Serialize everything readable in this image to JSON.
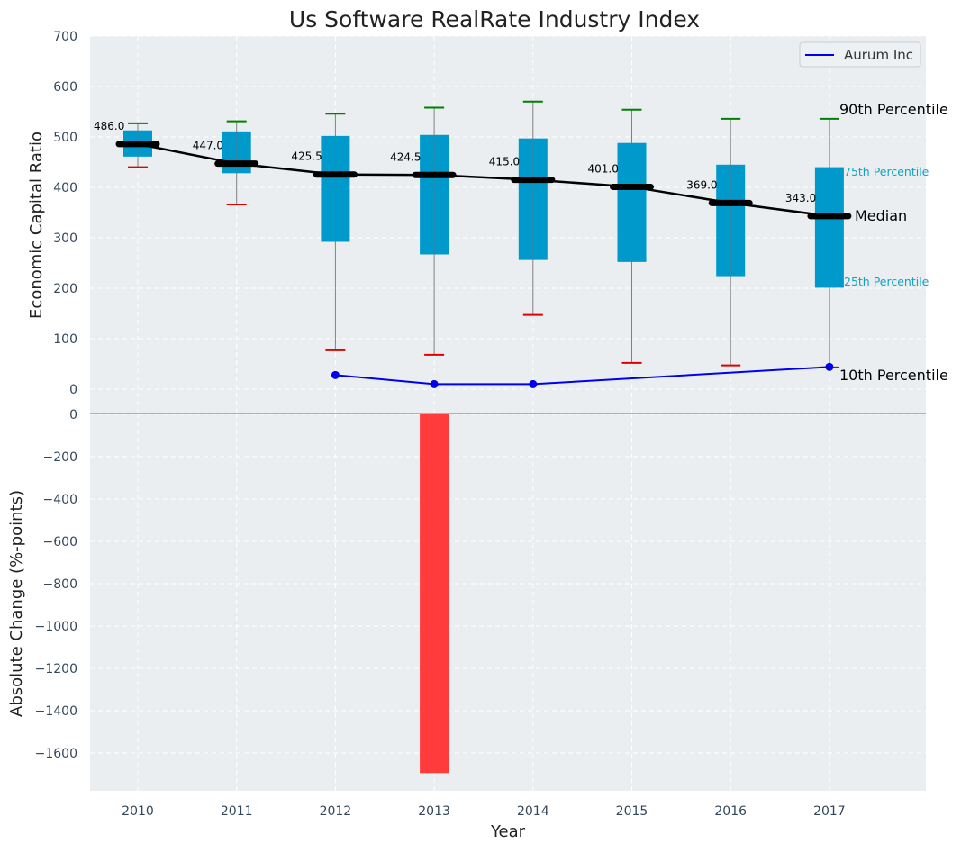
{
  "chart_data": [
    {
      "type": "box",
      "title": "Us Software RealRate Industry Index",
      "ylabel": "Economic Capital Ratio",
      "ylim": [
        0,
        700
      ],
      "yticks": [
        0,
        100,
        200,
        300,
        400,
        500,
        600,
        700
      ],
      "grid": true,
      "categories": [
        "2010",
        "2011",
        "2012",
        "2013",
        "2014",
        "2015",
        "2016",
        "2017"
      ],
      "percentiles": {
        "p10": [
          440,
          366,
          77,
          68,
          147,
          52,
          47,
          43
        ],
        "p25": [
          461,
          428,
          292,
          267,
          256,
          252,
          224,
          201
        ],
        "median": [
          486.0,
          447.0,
          425.5,
          424.5,
          415.0,
          401.0,
          369.0,
          343.0
        ],
        "p75": [
          513,
          511,
          502,
          504,
          497,
          488,
          445,
          440
        ],
        "p90": [
          527,
          531,
          546,
          558,
          570,
          554,
          536,
          536
        ]
      },
      "median_labels": [
        "486.0",
        "447.0",
        "425.5",
        "424.5",
        "415.0",
        "401.0",
        "369.0",
        "343.0"
      ],
      "company_series": {
        "name": "Aurum Inc",
        "x": [
          "2012",
          "2013",
          "2014",
          "2017"
        ],
        "values": [
          28,
          10,
          10,
          44
        ]
      },
      "percentile_labels": {
        "p90": "90th Percentile",
        "p75": "75th Percentile",
        "median": "Median",
        "p25": "25th Percentile",
        "p10": "10th Percentile"
      },
      "legend": {
        "placement": "top-right",
        "entries": [
          "Aurum Inc"
        ]
      },
      "colors": {
        "box": "#0099cc",
        "median": "#000000",
        "p90_cap": "#008000",
        "p10_cap": "#e00000",
        "company": "#0000ee",
        "bar": "#ff3b3b",
        "background": "#eaeef0",
        "grid": "#ffffff"
      }
    },
    {
      "type": "bar",
      "ylabel": "Absolute Change (%-points)",
      "xlabel": "Year",
      "ylim": [
        -1780,
        0
      ],
      "yticks": [
        0,
        -200,
        -400,
        -600,
        -800,
        -1000,
        -1200,
        -1400,
        -1600
      ],
      "categories": [
        "2010",
        "2011",
        "2012",
        "2013",
        "2014",
        "2015",
        "2016",
        "2017"
      ],
      "values": [
        null,
        null,
        null,
        -1695,
        null,
        null,
        null,
        null
      ],
      "grid": true
    }
  ]
}
